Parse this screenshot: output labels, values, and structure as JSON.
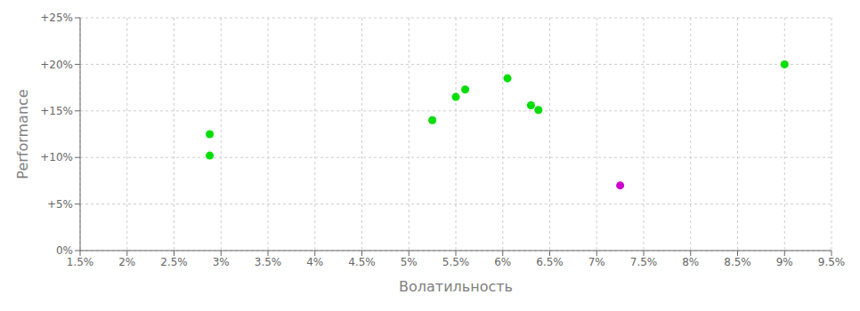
{
  "chart_data": {
    "type": "scatter",
    "xlabel": "Волатильность",
    "ylabel": "Performance",
    "series": [
      {
        "color": "#00dd00",
        "x": [
          2.88,
          2.88,
          5.25,
          5.5,
          5.6,
          6.05,
          6.3,
          6.38,
          9.0
        ],
        "values": [
          12.5,
          10.2,
          14.0,
          16.5,
          17.3,
          18.5,
          15.6,
          15.1,
          20.0
        ]
      },
      {
        "color": "#cc00cc",
        "x": [
          7.25
        ],
        "values": [
          7.0
        ]
      }
    ],
    "xlim": [
      1.5,
      9.5
    ],
    "ylim": [
      0,
      25
    ],
    "xticks": [
      {
        "value": 1.5,
        "label": "1.5%"
      },
      {
        "value": 2.0,
        "label": "2%"
      },
      {
        "value": 2.5,
        "label": "2.5%"
      },
      {
        "value": 3.0,
        "label": "3%"
      },
      {
        "value": 3.5,
        "label": "3.5%"
      },
      {
        "value": 4.0,
        "label": "4%"
      },
      {
        "value": 4.5,
        "label": "4.5%"
      },
      {
        "value": 5.0,
        "label": "5%"
      },
      {
        "value": 5.5,
        "label": "5.5%"
      },
      {
        "value": 6.0,
        "label": "6%"
      },
      {
        "value": 6.5,
        "label": "6.5%"
      },
      {
        "value": 7.0,
        "label": "7%"
      },
      {
        "value": 7.5,
        "label": "7.5%"
      },
      {
        "value": 8.0,
        "label": "8%"
      },
      {
        "value": 8.5,
        "label": "8.5%"
      },
      {
        "value": 9.0,
        "label": "9%"
      },
      {
        "value": 9.5,
        "label": "9.5%"
      }
    ],
    "yticks": [
      {
        "value": 0,
        "label": "0%"
      },
      {
        "value": 5,
        "label": "+5%"
      },
      {
        "value": 10,
        "label": "+10%"
      },
      {
        "value": 15,
        "label": "+15%"
      },
      {
        "value": 20,
        "label": "+20%"
      },
      {
        "value": 25,
        "label": "+25%"
      }
    ],
    "grid": true
  }
}
